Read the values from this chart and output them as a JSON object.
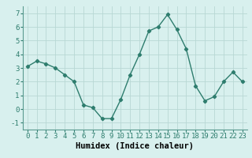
{
  "x": [
    0,
    1,
    2,
    3,
    4,
    5,
    6,
    7,
    8,
    9,
    10,
    11,
    12,
    13,
    14,
    15,
    16,
    17,
    18,
    19,
    20,
    21,
    22,
    23
  ],
  "y": [
    3.1,
    3.5,
    3.3,
    3.0,
    2.5,
    2.0,
    0.3,
    0.1,
    -0.7,
    -0.7,
    0.7,
    2.5,
    4.0,
    5.7,
    6.0,
    6.9,
    5.8,
    4.4,
    1.7,
    0.6,
    0.9,
    2.0,
    2.7,
    2.0
  ],
  "xlabel": "Humidex (Indice chaleur)",
  "ylim": [
    -1.5,
    7.5
  ],
  "xlim": [
    -0.5,
    23.5
  ],
  "yticks": [
    -1,
    0,
    1,
    2,
    3,
    4,
    5,
    6,
    7
  ],
  "xtick_labels": [
    "0",
    "1",
    "2",
    "3",
    "4",
    "5",
    "6",
    "7",
    "8",
    "9",
    "10",
    "11",
    "12",
    "13",
    "14",
    "15",
    "16",
    "17",
    "18",
    "19",
    "20",
    "21",
    "22",
    "23"
  ],
  "line_color": "#2e7d6e",
  "marker": "D",
  "marker_size": 2.2,
  "bg_color": "#d8f0ee",
  "grid_color": "#b8d8d4",
  "xlabel_fontsize": 7.5,
  "tick_fontsize": 6.5
}
